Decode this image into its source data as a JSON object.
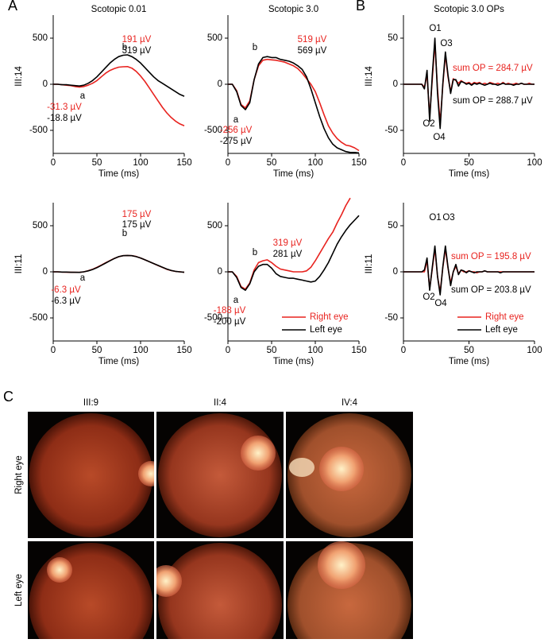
{
  "figure": {
    "panels": [
      "A",
      "B",
      "C"
    ],
    "fundus": {
      "columns": [
        "III:9",
        "II:4",
        "IV:4"
      ],
      "rows": [
        "Right eye",
        "Left eye"
      ]
    }
  },
  "chart_data": [
    {
      "type": "line",
      "title": "Scotopic 0.01",
      "row_label": "III:14",
      "xlabel": "Time (ms)",
      "x": [
        0,
        5,
        10,
        15,
        20,
        25,
        30,
        35,
        40,
        45,
        50,
        55,
        60,
        65,
        70,
        75,
        80,
        85,
        90,
        95,
        100,
        105,
        110,
        115,
        120,
        125,
        130,
        135,
        140,
        145,
        150
      ],
      "series": [
        {
          "name": "Right eye",
          "color": "#e8231f",
          "values": [
            0,
            0,
            -5,
            -10,
            -15,
            -25,
            -31,
            -25,
            -10,
            10,
            40,
            80,
            120,
            150,
            170,
            185,
            190,
            191,
            175,
            140,
            90,
            30,
            -40,
            -110,
            -180,
            -250,
            -310,
            -360,
            -400,
            -430,
            -450
          ]
        },
        {
          "name": "Left eye",
          "color": "#000000",
          "values": [
            0,
            0,
            -5,
            -5,
            -10,
            -15,
            -19,
            -10,
            10,
            40,
            80,
            130,
            180,
            230,
            270,
            300,
            315,
            319,
            300,
            270,
            230,
            180,
            130,
            80,
            40,
            10,
            -20,
            -50,
            -80,
            -110,
            -130
          ]
        }
      ],
      "xlim": [
        0,
        150
      ],
      "xticks": [
        0,
        50,
        100,
        150
      ],
      "ylim": [
        -750,
        750
      ],
      "yticks": [
        -500,
        0,
        500
      ],
      "legend": false,
      "annotations": [
        {
          "text": "191 µV",
          "color": "#e8231f"
        },
        {
          "text": "319 µV",
          "color": "#000000"
        },
        {
          "text": "b",
          "color": "#000000"
        },
        {
          "text": "a",
          "color": "#000000"
        },
        {
          "text": "-31.3 µV",
          "color": "#e8231f"
        },
        {
          "text": "-18.8 µV",
          "color": "#000000"
        }
      ]
    },
    {
      "type": "line",
      "title": "Scotopic 3.0",
      "xlabel": "Time (ms)",
      "x": [
        0,
        5,
        10,
        15,
        20,
        25,
        30,
        35,
        40,
        45,
        50,
        55,
        60,
        65,
        70,
        75,
        80,
        85,
        90,
        95,
        100,
        105,
        110,
        115,
        120,
        125,
        130,
        135,
        140,
        145,
        150
      ],
      "series": [
        {
          "name": "Right eye",
          "color": "#e8231f",
          "values": [
            0,
            0,
            -70,
            -220,
            -256,
            -180,
            50,
            200,
            260,
            270,
            265,
            260,
            250,
            240,
            220,
            200,
            170,
            120,
            60,
            0,
            -80,
            -200,
            -330,
            -450,
            -530,
            -590,
            -630,
            -660,
            -670,
            -690,
            -720
          ]
        },
        {
          "name": "Left eye",
          "color": "#000000",
          "values": [
            0,
            0,
            -80,
            -230,
            -275,
            -200,
            50,
            220,
            290,
            300,
            290,
            290,
            270,
            260,
            250,
            230,
            200,
            160,
            80,
            -50,
            -200,
            -350,
            -480,
            -580,
            -650,
            -690,
            -710,
            -730,
            -740,
            -740,
            -745
          ]
        }
      ],
      "xlim": [
        0,
        150
      ],
      "xticks": [
        0,
        50,
        100,
        150
      ],
      "ylim": [
        -750,
        750
      ],
      "yticks": [
        -500,
        0,
        500
      ],
      "legend": false,
      "annotations": [
        {
          "text": "519 µV",
          "color": "#e8231f"
        },
        {
          "text": "569 µV",
          "color": "#000000"
        },
        {
          "text": "b",
          "color": "#000000"
        },
        {
          "text": "a",
          "color": "#000000"
        },
        {
          "text": "-256 µV",
          "color": "#e8231f"
        },
        {
          "text": "-275 µV",
          "color": "#000000"
        }
      ]
    },
    {
      "type": "line",
      "title": "Scotopic 3.0 OPs",
      "row_label": "III:14",
      "xlabel": "Time (ms)",
      "x": [
        0,
        2,
        4,
        6,
        8,
        10,
        12,
        14,
        16,
        18,
        20,
        22,
        24,
        26,
        28,
        30,
        32,
        34,
        36,
        38,
        40,
        42,
        44,
        46,
        48,
        50,
        52,
        54,
        56,
        58,
        60,
        62,
        64,
        66,
        68,
        70,
        72,
        74,
        76,
        78,
        80,
        82,
        84,
        86,
        88,
        90,
        92,
        94,
        96,
        98,
        100
      ],
      "series": [
        {
          "name": "Right eye",
          "color": "#e8231f",
          "values": [
            0,
            0,
            0,
            0,
            0,
            0,
            0,
            0,
            -3,
            10,
            -35,
            5,
            45,
            -5,
            -42,
            -2,
            32,
            8,
            -8,
            6,
            4,
            1,
            4,
            2,
            1,
            2,
            0,
            2,
            1,
            2,
            0,
            1,
            0,
            2,
            1,
            0,
            1,
            0,
            2,
            0,
            1,
            0,
            0,
            1,
            0,
            1,
            0,
            0,
            1,
            0,
            0
          ]
        },
        {
          "name": "Left eye",
          "color": "#000000",
          "values": [
            0,
            0,
            0,
            0,
            0,
            0,
            0,
            0,
            -5,
            15,
            -40,
            10,
            50,
            -10,
            -48,
            0,
            35,
            10,
            -10,
            5,
            5,
            -2,
            3,
            2,
            0,
            1,
            -1,
            1,
            0,
            1,
            0,
            -1,
            0,
            1,
            0,
            0,
            -1,
            0,
            1,
            0,
            0,
            0,
            -1,
            0,
            0,
            1,
            0,
            0,
            0,
            0,
            0
          ]
        }
      ],
      "xlim": [
        0,
        100
      ],
      "xticks": [
        0,
        50,
        100
      ],
      "ylim": [
        -75,
        75
      ],
      "yticks": [
        -50,
        0,
        50
      ],
      "legend": false,
      "annotations": [
        {
          "text": "O1",
          "color": "#000000"
        },
        {
          "text": "O3",
          "color": "#000000"
        },
        {
          "text": "O2",
          "color": "#000000"
        },
        {
          "text": "O4",
          "color": "#000000"
        },
        {
          "text": "sum OP = 284.7 µV",
          "color": "#e8231f"
        },
        {
          "text": "sum OP = 288.7 µV",
          "color": "#000000"
        }
      ]
    },
    {
      "type": "line",
      "row_label": "III:11",
      "xlabel": "Time (ms)",
      "x": [
        0,
        5,
        10,
        15,
        20,
        25,
        30,
        35,
        40,
        45,
        50,
        55,
        60,
        65,
        70,
        75,
        80,
        85,
        90,
        95,
        100,
        105,
        110,
        115,
        120,
        125,
        130,
        135,
        140,
        145,
        150
      ],
      "series": [
        {
          "name": "Right eye",
          "color": "#e8231f",
          "values": [
            0,
            0,
            -3,
            -4,
            -5,
            -6,
            -6,
            0,
            12,
            28,
            48,
            72,
            98,
            122,
            146,
            164,
            175,
            177,
            175,
            166,
            150,
            130,
            110,
            90,
            68,
            48,
            28,
            14,
            4,
            0,
            -5
          ]
        },
        {
          "name": "Left eye",
          "color": "#000000",
          "values": [
            0,
            0,
            -3,
            -3,
            -5,
            -5,
            -6,
            0,
            10,
            25,
            45,
            70,
            95,
            120,
            145,
            165,
            175,
            178,
            175,
            165,
            150,
            130,
            110,
            90,
            70,
            50,
            30,
            15,
            5,
            0,
            -5
          ]
        }
      ],
      "xlim": [
        0,
        150
      ],
      "xticks": [
        0,
        50,
        100,
        150
      ],
      "ylim": [
        -750,
        750
      ],
      "yticks": [
        -500,
        0,
        500
      ],
      "legend": false,
      "annotations": [
        {
          "text": "175 µV",
          "color": "#e8231f"
        },
        {
          "text": "175 µV",
          "color": "#000000"
        },
        {
          "text": "b",
          "color": "#000000"
        },
        {
          "text": "a",
          "color": "#000000"
        },
        {
          "text": "-6.3 µV",
          "color": "#e8231f"
        },
        {
          "text": "-6.3 µV",
          "color": "#000000"
        }
      ]
    },
    {
      "type": "line",
      "xlabel": "Time (ms)",
      "x": [
        0,
        5,
        10,
        15,
        20,
        25,
        30,
        35,
        40,
        45,
        50,
        55,
        60,
        65,
        70,
        75,
        80,
        85,
        90,
        95,
        100,
        105,
        110,
        115,
        120,
        125,
        130,
        135,
        140,
        145,
        150
      ],
      "series": [
        {
          "name": "Right eye",
          "color": "#e8231f",
          "values": [
            0,
            0,
            -50,
            -160,
            -188,
            -120,
            20,
            100,
            120,
            130,
            100,
            60,
            30,
            20,
            10,
            0,
            0,
            0,
            10,
            50,
            120,
            200,
            280,
            360,
            430,
            530,
            620,
            720,
            800,
            null,
            null
          ]
        },
        {
          "name": "Left eye",
          "color": "#000000",
          "values": [
            0,
            0,
            -60,
            -170,
            -200,
            -130,
            0,
            60,
            80,
            80,
            40,
            -20,
            -50,
            -60,
            -70,
            -70,
            -80,
            -90,
            -100,
            -110,
            -100,
            -50,
            20,
            100,
            200,
            300,
            380,
            450,
            510,
            560,
            610
          ]
        }
      ],
      "xlim": [
        0,
        150
      ],
      "xticks": [
        0,
        50,
        100,
        150
      ],
      "ylim": [
        -750,
        750
      ],
      "yticks": [
        -500,
        0,
        500
      ],
      "legend": true,
      "annotations": [
        {
          "text": "319 µV",
          "color": "#e8231f"
        },
        {
          "text": "281 µV",
          "color": "#000000"
        },
        {
          "text": "b",
          "color": "#000000"
        },
        {
          "text": "a",
          "color": "#000000"
        },
        {
          "text": "-188 µV",
          "color": "#e8231f"
        },
        {
          "text": "-200 µV",
          "color": "#000000"
        }
      ]
    },
    {
      "type": "line",
      "row_label": "III:11",
      "xlabel": "Time (ms)",
      "x": [
        0,
        2,
        4,
        6,
        8,
        10,
        12,
        14,
        16,
        18,
        20,
        22,
        24,
        26,
        28,
        30,
        32,
        34,
        36,
        38,
        40,
        42,
        44,
        46,
        48,
        50,
        52,
        54,
        56,
        58,
        60,
        62,
        64,
        66,
        68,
        70,
        72,
        74,
        76,
        78,
        80,
        82,
        84,
        86,
        88,
        90,
        92,
        94,
        96,
        98,
        100
      ],
      "series": [
        {
          "name": "Right eye",
          "color": "#e8231f",
          "values": [
            0,
            0,
            0,
            0,
            0,
            0,
            0,
            0,
            0,
            12,
            -18,
            3,
            25,
            -5,
            -22,
            4,
            25,
            4,
            -12,
            0,
            6,
            -2,
            2,
            0,
            0,
            1,
            0,
            0,
            -1,
            0,
            0,
            1,
            0,
            0,
            0,
            0,
            0,
            0,
            0,
            0,
            0,
            0,
            0,
            0,
            0,
            0,
            0,
            0,
            0,
            0,
            0
          ]
        },
        {
          "name": "Left eye",
          "color": "#000000",
          "values": [
            0,
            0,
            0,
            0,
            0,
            0,
            0,
            0,
            2,
            15,
            -20,
            5,
            28,
            -5,
            -25,
            5,
            28,
            5,
            -15,
            0,
            8,
            -3,
            2,
            1,
            -1,
            1,
            0,
            -1,
            0,
            0,
            0,
            1,
            0,
            0,
            0,
            0,
            0,
            -1,
            0,
            0,
            0,
            0,
            0,
            0,
            0,
            0,
            0,
            0,
            0,
            0,
            0
          ]
        }
      ],
      "xlim": [
        0,
        100
      ],
      "xticks": [
        0,
        50,
        100
      ],
      "ylim": [
        -75,
        75
      ],
      "yticks": [
        -50,
        0,
        50
      ],
      "legend": true,
      "annotations": [
        {
          "text": "O1",
          "color": "#000000"
        },
        {
          "text": "O3",
          "color": "#000000"
        },
        {
          "text": "O2",
          "color": "#000000"
        },
        {
          "text": "O4",
          "color": "#000000"
        },
        {
          "text": "sum OP = 195.8 µV",
          "color": "#e8231f"
        },
        {
          "text": "sum OP = 203.8 µV",
          "color": "#000000"
        }
      ]
    }
  ]
}
